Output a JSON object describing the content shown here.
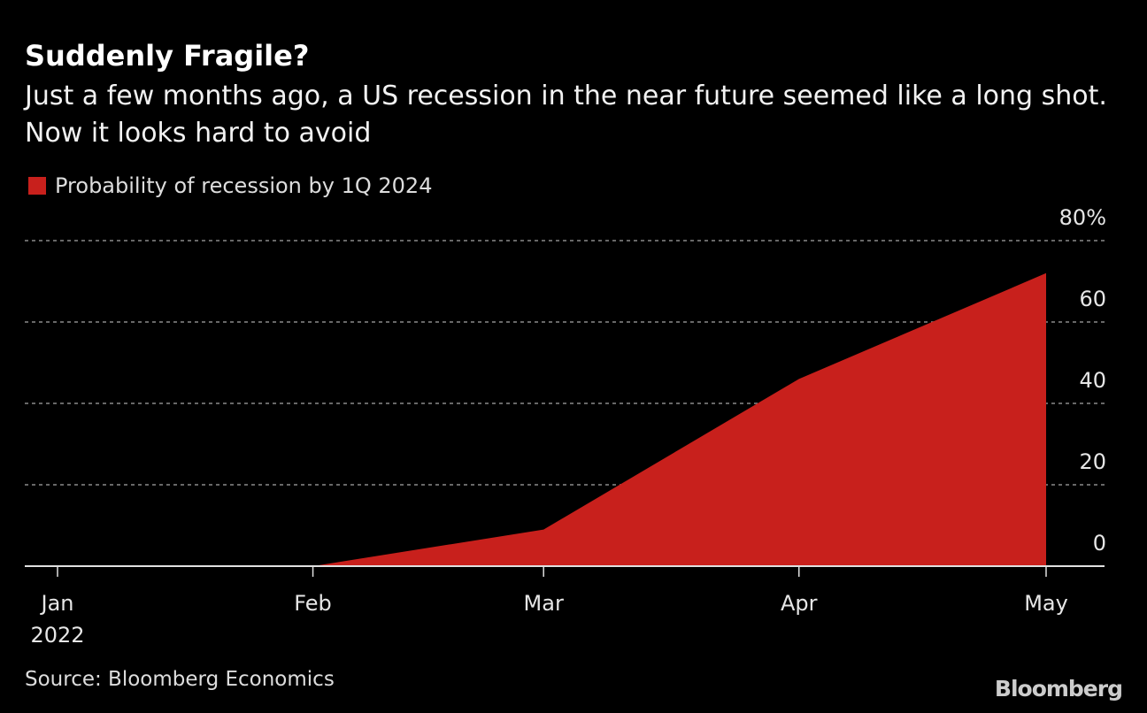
{
  "title": "Suddenly Fragile?",
  "subtitle": "Just a few months ago, a US recession in the near future seemed like a long shot. Now it looks hard to avoid",
  "source": "Source: Bloomberg Economics",
  "logo": "Bloomberg",
  "chart_data": {
    "type": "area",
    "title": "Suddenly Fragile?",
    "series": [
      {
        "name": "Probability of recession by 1Q 2024",
        "color": "#c8201c",
        "x": [
          "2022-02-01",
          "2022-03-01",
          "2022-04-01",
          "2022-05-01"
        ],
        "values": [
          0,
          9,
          46,
          72
        ]
      }
    ],
    "xlim": [
      "2022-01-01",
      "2022-05-01"
    ],
    "xticks": [
      {
        "date": "2022-01-01",
        "label": "Jan",
        "sublabel": "2022"
      },
      {
        "date": "2022-02-01",
        "label": "Feb"
      },
      {
        "date": "2022-03-01",
        "label": "Mar"
      },
      {
        "date": "2022-04-01",
        "label": "Apr"
      },
      {
        "date": "2022-05-01",
        "label": "May"
      }
    ],
    "ylim": [
      0,
      80
    ],
    "yticks": [
      {
        "value": 0,
        "label": "0"
      },
      {
        "value": 20,
        "label": "20"
      },
      {
        "value": 40,
        "label": "40"
      },
      {
        "value": 60,
        "label": "60"
      },
      {
        "value": 80,
        "label": "80%"
      }
    ],
    "yaxis_position": "right",
    "grid": true,
    "legend_position": "top-left"
  }
}
